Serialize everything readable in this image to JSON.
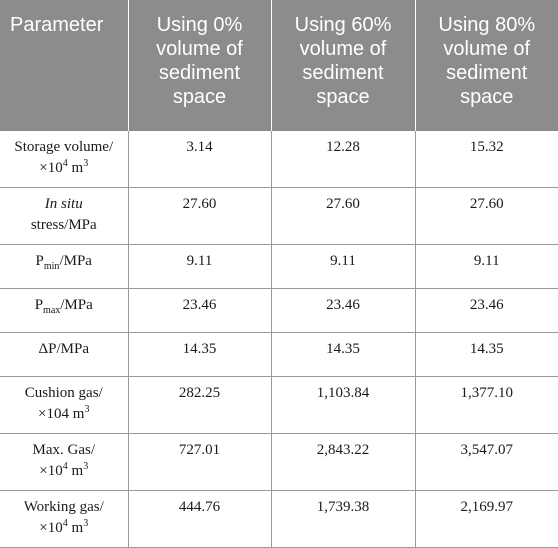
{
  "header": {
    "parameter": "Parameter",
    "col1": "Using 0% volume of sediment space",
    "col2": "Using 60% volume of sediment space",
    "col3": "Using 80% volume of sediment space"
  },
  "rows": [
    {
      "label_a": "Storage volume/",
      "label_b": "×10",
      "label_sup": "4",
      "label_c": " m",
      "label_sup2": "3",
      "v1": "3.14",
      "v2": "12.28",
      "v3": "15.32"
    },
    {
      "label_italic": "In situ",
      "label_rest": "stress/MPa",
      "v1": "27.60",
      "v2": "27.60",
      "v3": "27.60"
    },
    {
      "label_main": "P",
      "label_sub": "min",
      "label_tail": "/MPa",
      "v1": "9.11",
      "v2": "9.11",
      "v3": "9.11"
    },
    {
      "label_main": "P",
      "label_sub": "max",
      "label_tail": "/MPa",
      "v1": "23.46",
      "v2": "23.46",
      "v3": "23.46"
    },
    {
      "label": "ΔP/MPa",
      "v1": "14.35",
      "v2": "14.35",
      "v3": "14.35"
    },
    {
      "label_a": "Cushion gas/",
      "label_b": "×104 m",
      "label_sup2": "3",
      "v1": "282.25",
      "v2": "1,103.84",
      "v3": "1,377.10"
    },
    {
      "label_a": "Max. Gas/",
      "label_b": "×10",
      "label_sup": "4",
      "label_c": " m",
      "label_sup2": "3",
      "v1": "727.01",
      "v2": "2,843.22",
      "v3": "3,547.07"
    },
    {
      "label_a": "Working gas/",
      "label_b": "×10",
      "label_sup": "4",
      "label_c": " m",
      "label_sup2": "3",
      "v1": "444.76",
      "v2": "1,739.38",
      "v3": "2,169.97"
    }
  ]
}
